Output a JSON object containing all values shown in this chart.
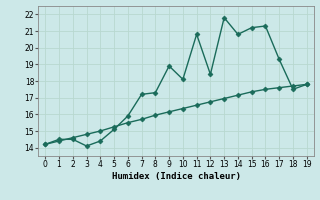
{
  "xlabel": "Humidex (Indice chaleur)",
  "ylabel": "",
  "xlim": [
    -0.5,
    19.5
  ],
  "ylim": [
    13.5,
    22.5
  ],
  "xticks": [
    0,
    1,
    2,
    3,
    4,
    5,
    6,
    7,
    8,
    9,
    10,
    11,
    12,
    13,
    14,
    15,
    16,
    17,
    18,
    19
  ],
  "yticks": [
    14,
    15,
    16,
    17,
    18,
    19,
    20,
    21,
    22
  ],
  "background_color": "#cce8e8",
  "grid_color": "#b8d8d0",
  "line_color": "#1a6b5a",
  "curve1_x": [
    0,
    1,
    2,
    3,
    4,
    5,
    6,
    7,
    8,
    9,
    10,
    11,
    12,
    13,
    14,
    15,
    16,
    17,
    18,
    19
  ],
  "curve1_y": [
    14.2,
    14.5,
    14.5,
    14.1,
    14.4,
    15.1,
    15.9,
    17.2,
    17.3,
    18.9,
    18.1,
    20.8,
    18.4,
    21.8,
    20.8,
    21.2,
    21.3,
    19.3,
    17.5,
    17.8
  ],
  "curve2_x": [
    0,
    1,
    2,
    3,
    4,
    5,
    6,
    7,
    8,
    9,
    10,
    11,
    12,
    13,
    14,
    15,
    16,
    17,
    18,
    19
  ],
  "curve2_y": [
    14.2,
    14.4,
    14.6,
    14.8,
    15.0,
    15.25,
    15.5,
    15.7,
    15.95,
    16.15,
    16.35,
    16.55,
    16.75,
    16.95,
    17.15,
    17.35,
    17.5,
    17.6,
    17.7,
    17.8
  ],
  "marker": "D",
  "markersize": 2.5,
  "linewidth": 1.0
}
